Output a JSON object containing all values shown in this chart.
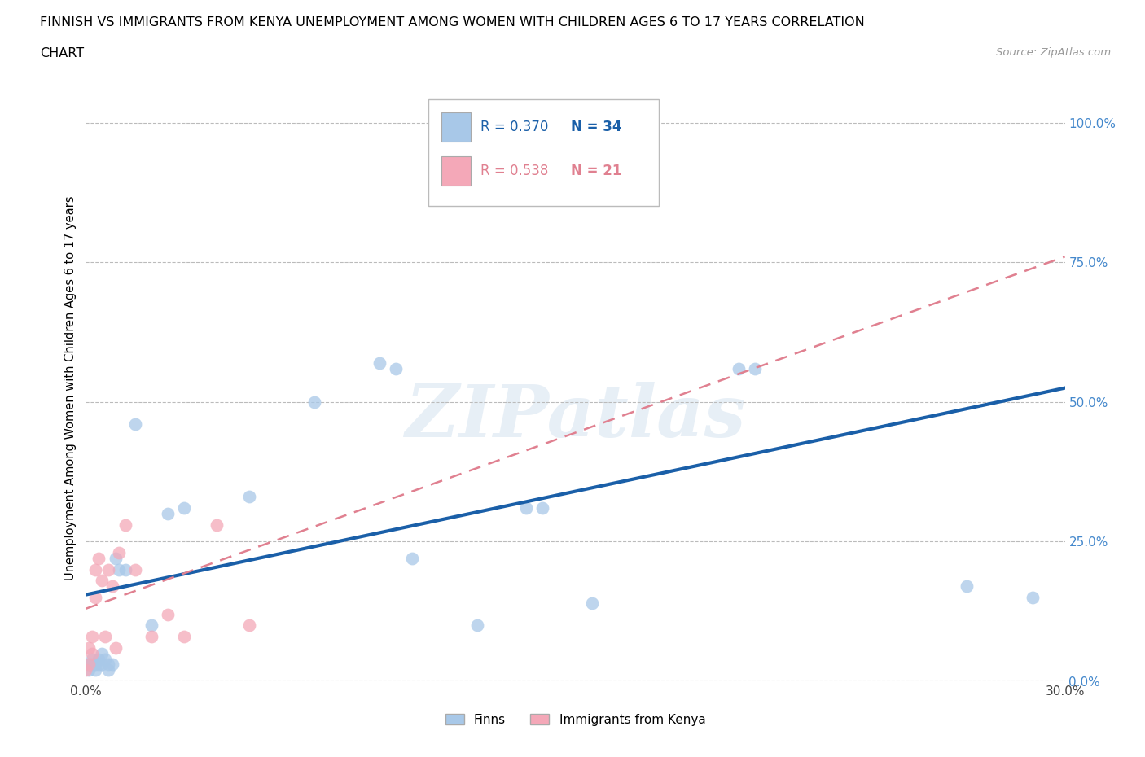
{
  "title_line1": "FINNISH VS IMMIGRANTS FROM KENYA UNEMPLOYMENT AMONG WOMEN WITH CHILDREN AGES 6 TO 17 YEARS CORRELATION",
  "title_line2": "CHART",
  "source": "Source: ZipAtlas.com",
  "ylabel": "Unemployment Among Women with Children Ages 6 to 17 years",
  "xlim": [
    0.0,
    0.3
  ],
  "ylim": [
    0.0,
    1.05
  ],
  "xticks": [
    0.0,
    0.05,
    0.1,
    0.15,
    0.2,
    0.25,
    0.3
  ],
  "xtick_labels": [
    "0.0%",
    "",
    "",
    "",
    "",
    "",
    "30.0%"
  ],
  "yticks": [
    0.0,
    0.25,
    0.5,
    0.75,
    1.0
  ],
  "ytick_labels": [
    "0.0%",
    "25.0%",
    "50.0%",
    "75.0%",
    "100.0%"
  ],
  "grid_color": "#bbbbbb",
  "background_color": "#ffffff",
  "finns_color": "#a8c8e8",
  "kenya_color": "#f4a8b8",
  "line_finns_color": "#1a5fa8",
  "line_kenya_color": "#e08090",
  "R_finns": "0.370",
  "N_finns": "34",
  "R_kenya": "0.538",
  "N_kenya": "21",
  "watermark": "ZIPatlas",
  "legend_color": "#1a5fa8",
  "finns_x": [
    0.001,
    0.001,
    0.002,
    0.002,
    0.003,
    0.003,
    0.004,
    0.004,
    0.005,
    0.005,
    0.006,
    0.007,
    0.007,
    0.008,
    0.009,
    0.01,
    0.012,
    0.015,
    0.02,
    0.025,
    0.03,
    0.05,
    0.07,
    0.09,
    0.095,
    0.1,
    0.12,
    0.135,
    0.14,
    0.155,
    0.2,
    0.205,
    0.27,
    0.29
  ],
  "finns_y": [
    0.03,
    0.02,
    0.04,
    0.03,
    0.03,
    0.02,
    0.04,
    0.03,
    0.05,
    0.03,
    0.04,
    0.03,
    0.02,
    0.03,
    0.22,
    0.2,
    0.2,
    0.46,
    0.1,
    0.3,
    0.31,
    0.33,
    0.5,
    0.57,
    0.56,
    0.22,
    0.1,
    0.31,
    0.31,
    0.14,
    0.56,
    0.56,
    0.17,
    0.15
  ],
  "kenya_x": [
    0.0,
    0.001,
    0.001,
    0.002,
    0.002,
    0.003,
    0.003,
    0.004,
    0.005,
    0.006,
    0.007,
    0.008,
    0.009,
    0.01,
    0.012,
    0.015,
    0.02,
    0.025,
    0.03,
    0.04,
    0.05
  ],
  "kenya_y": [
    0.02,
    0.03,
    0.06,
    0.05,
    0.08,
    0.2,
    0.15,
    0.22,
    0.18,
    0.08,
    0.2,
    0.17,
    0.06,
    0.23,
    0.28,
    0.2,
    0.08,
    0.12,
    0.08,
    0.28,
    0.1
  ],
  "line_finns_x0": 0.0,
  "line_finns_y0": 0.155,
  "line_finns_x1": 0.3,
  "line_finns_y1": 0.525,
  "line_kenya_x0": 0.0,
  "line_kenya_y0": 0.13,
  "line_kenya_x1": 0.3,
  "line_kenya_y1": 0.76
}
